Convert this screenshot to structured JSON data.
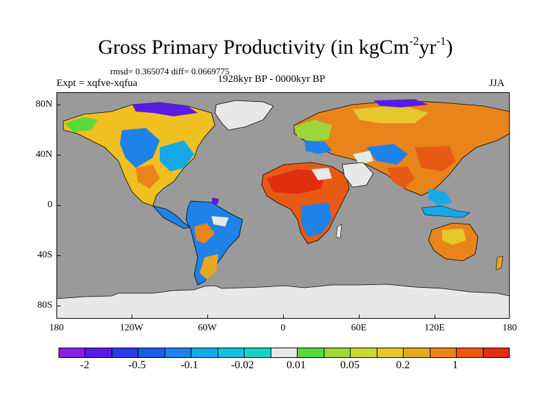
{
  "title": {
    "main": "Gross Primary Productivity (in kgCm",
    "sup1": "-2",
    "mid": "yr",
    "sup2": "-1",
    "end": ")"
  },
  "stats": "rmsd= 0.365074 diff= 0.0669775",
  "experiment": "Expt = xqfve-xqfua",
  "period": "1928kyr BP - 0000kyr BP",
  "season": "JJA",
  "axes": {
    "y_labels": [
      "80N",
      "40N",
      "0",
      "40S",
      "80S"
    ],
    "x_labels": [
      "180",
      "120W",
      "60W",
      "0",
      "60E",
      "120E",
      "180"
    ]
  },
  "colors": {
    "ocean": "#9a9a9a",
    "ice": "#e8e8e8",
    "coast": "#000000"
  },
  "colorbar": {
    "colors": [
      "#8a1ee6",
      "#5a1ae6",
      "#2a3ce8",
      "#1a5fe0",
      "#1f82e8",
      "#16a8e8",
      "#12c2e0",
      "#16d2c4",
      "#e8e8e8",
      "#5ad83c",
      "#9cd83a",
      "#c8d838",
      "#e4c82c",
      "#e8a81e",
      "#e8841a",
      "#e85a14",
      "#e02e10"
    ],
    "labels": [
      "-2",
      "-0.5",
      "-0.1",
      "-0.02",
      "0.01",
      "0.05",
      "0.2",
      "1"
    ]
  }
}
